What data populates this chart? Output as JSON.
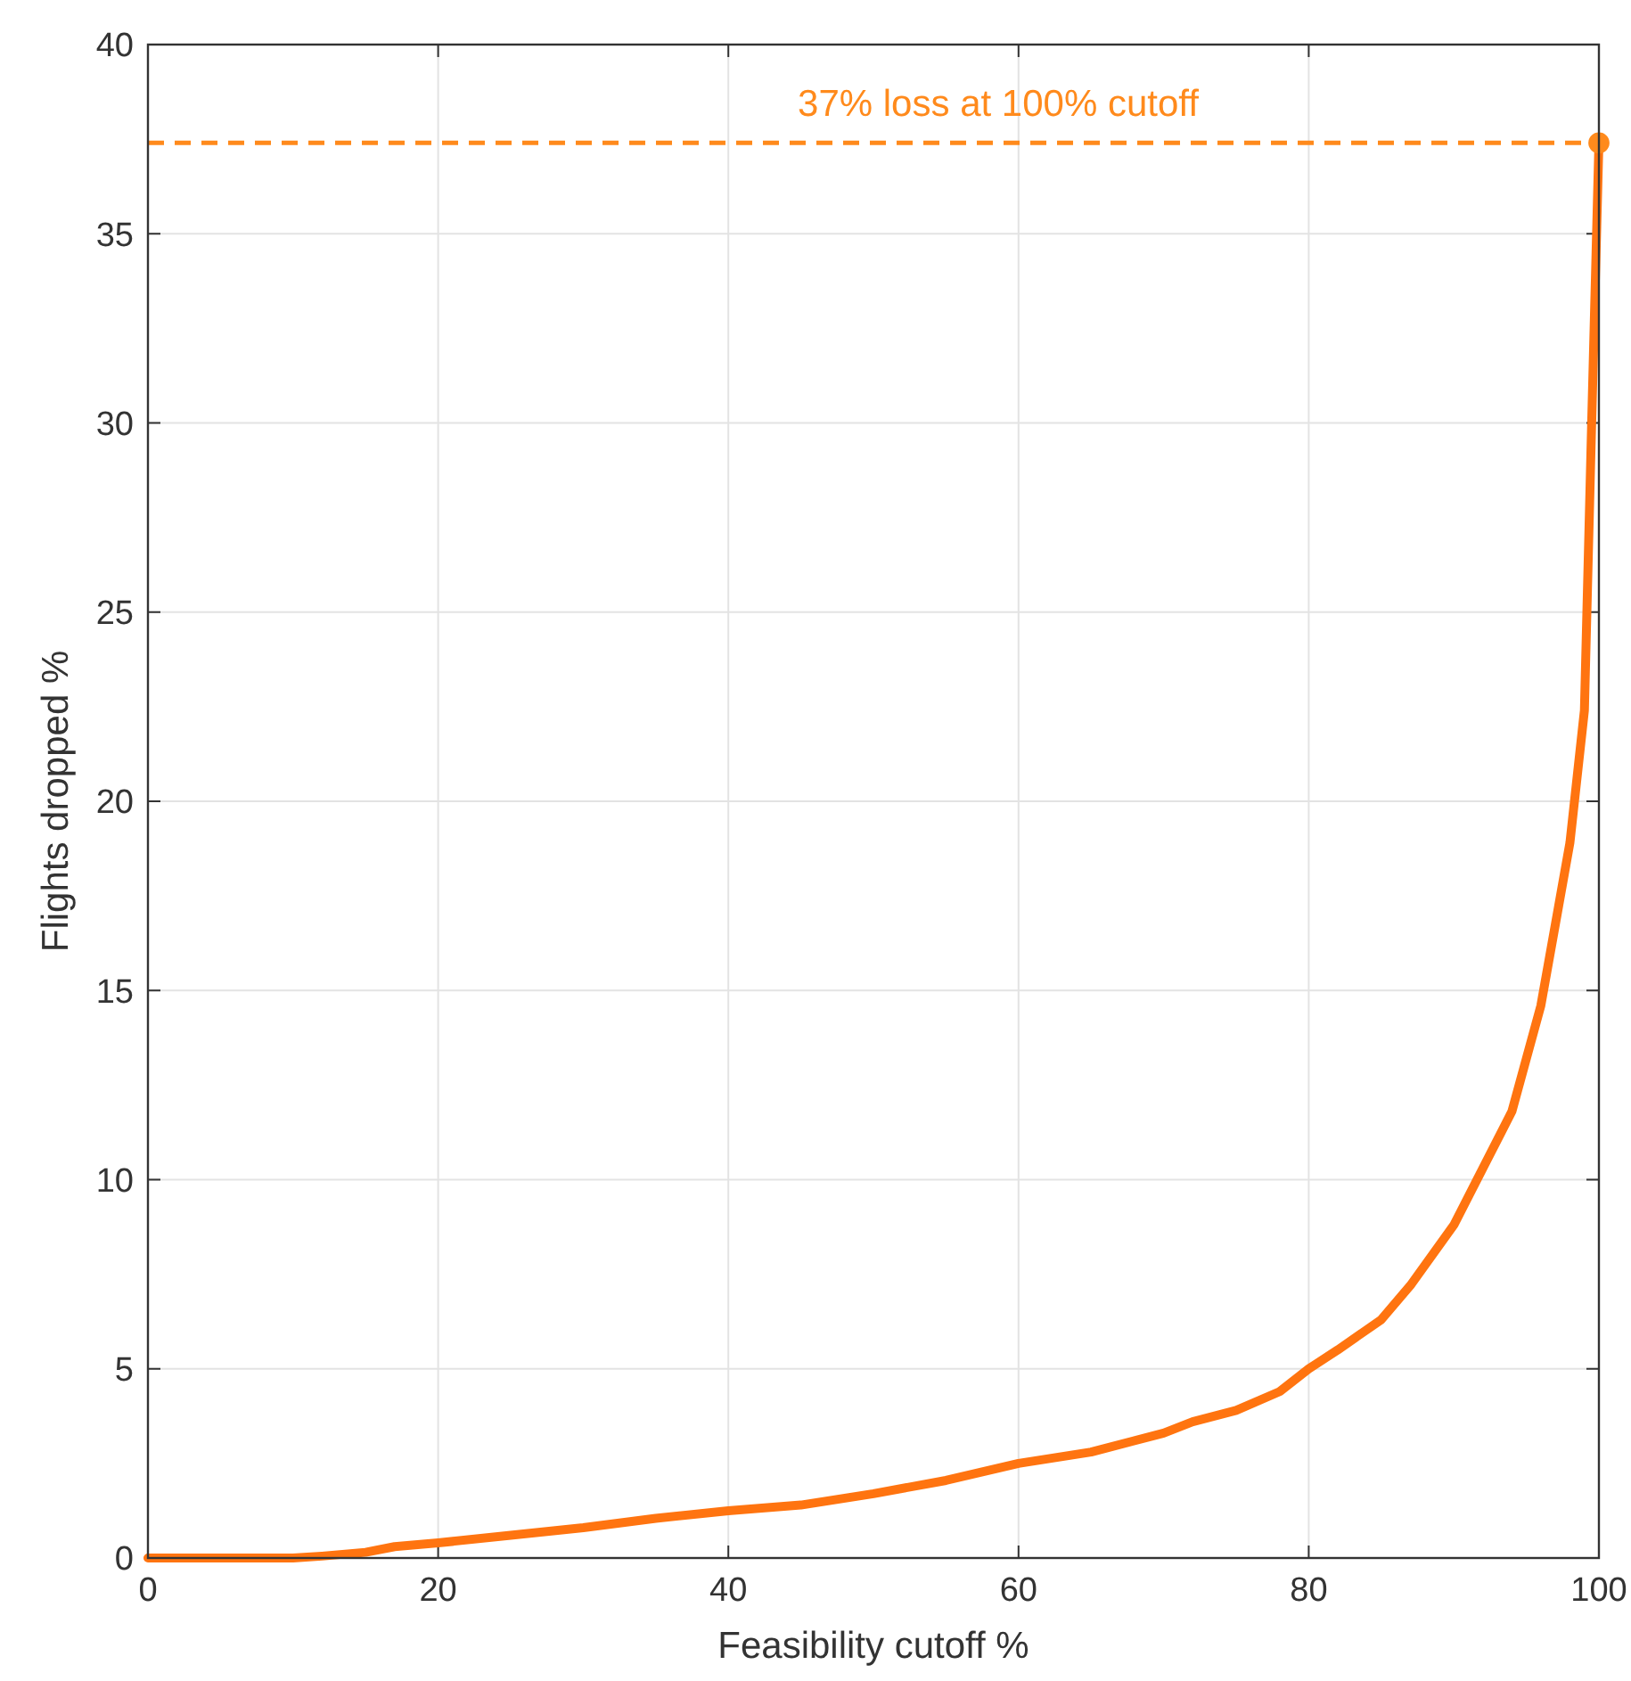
{
  "chart_data": {
    "type": "line",
    "xlabel": "Feasibility cutoff %",
    "ylabel": "Flights dropped %",
    "xlim": [
      0,
      100
    ],
    "ylim": [
      0,
      40
    ],
    "xticks": [
      0,
      20,
      40,
      60,
      80,
      100
    ],
    "yticks": [
      0,
      5,
      10,
      15,
      20,
      25,
      30,
      35,
      40
    ],
    "grid": true,
    "line_style": "solid",
    "marker": "none",
    "series": [
      {
        "color": "#ff7410",
        "x": [
          0,
          5,
          10,
          12,
          15,
          17,
          20,
          25,
          30,
          35,
          40,
          45,
          50,
          55,
          60,
          65,
          70,
          72,
          75,
          78,
          80,
          82,
          85,
          87,
          90,
          92,
          94,
          96,
          98,
          99,
          99.5,
          100
        ],
        "values": [
          0,
          0,
          0,
          0.05,
          0.15,
          0.3,
          0.4,
          0.6,
          0.8,
          1.05,
          1.25,
          1.4,
          1.7,
          2.05,
          2.5,
          2.8,
          3.3,
          3.6,
          3.9,
          4.4,
          5.0,
          5.5,
          6.3,
          7.2,
          8.8,
          10.3,
          11.8,
          14.6,
          18.9,
          22.4,
          30,
          37.4
        ]
      },
      {
        "type": "scatter",
        "marker": "circle",
        "color": "#ff8a1c",
        "x": [
          100
        ],
        "values": [
          37.4
        ]
      }
    ],
    "ref_lines": [
      {
        "axis": "y",
        "value": 37.4,
        "label": "37% loss at 100% cutoff",
        "color": "#ff8a1c",
        "line_style": "dashed"
      }
    ]
  }
}
